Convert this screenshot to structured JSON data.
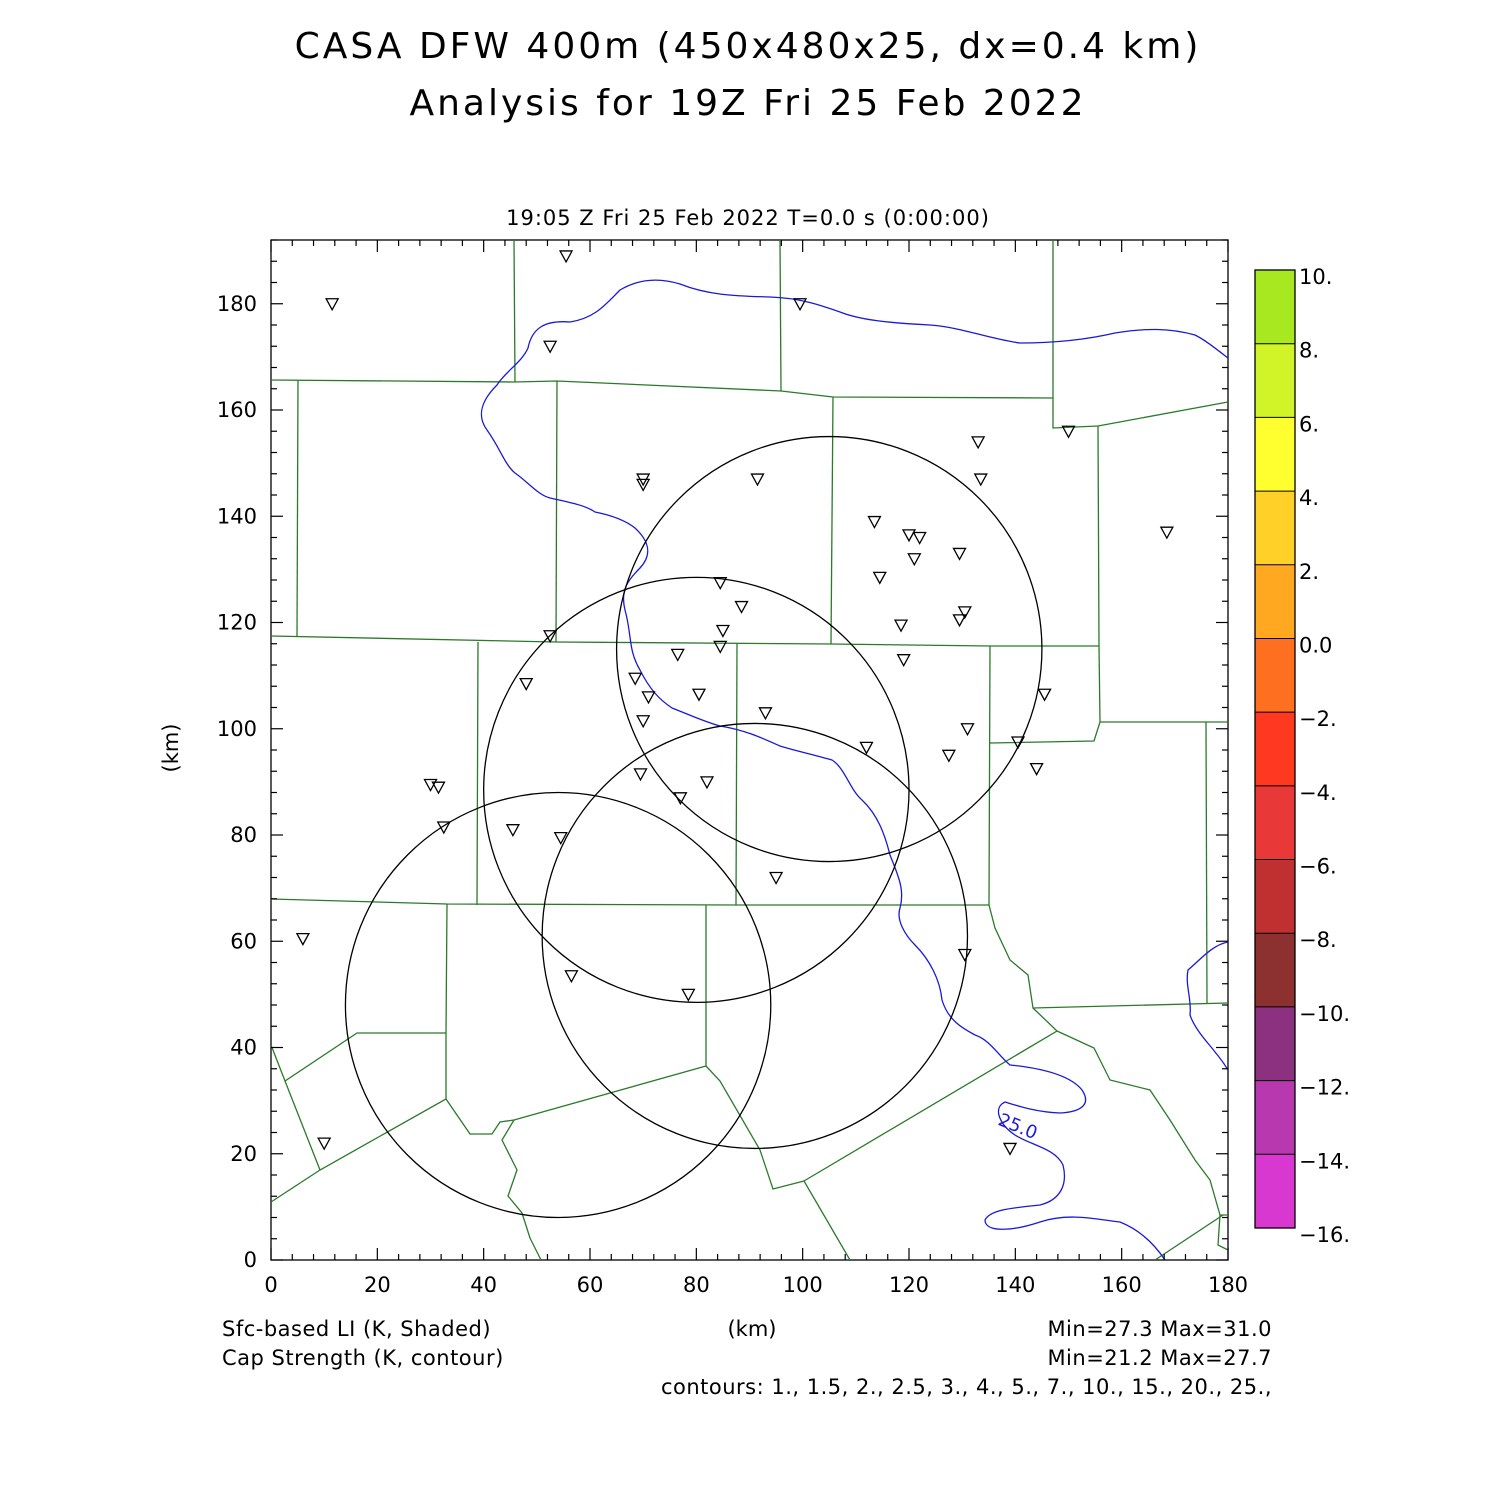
{
  "title": {
    "line1": "CASA DFW 400m (450x480x25, dx=0.4 km)",
    "line2": "Analysis for 19Z Fri 25 Feb 2022"
  },
  "subtitle": "19:05 Z Fri 25 Feb 2022    T=0.0 s (0:00:00)",
  "axes": {
    "xlabel": "(km)",
    "ylabel": "(km)",
    "xlim": [
      0,
      180
    ],
    "ylim": [
      0,
      192
    ],
    "xticks": [
      "0",
      "20",
      "40",
      "60",
      "80",
      "100",
      "120",
      "140",
      "160",
      "180"
    ],
    "yticks": [
      "0",
      "20",
      "40",
      "60",
      "80",
      "100",
      "120",
      "140",
      "160",
      "180"
    ]
  },
  "colorbar": {
    "labels": [
      "10.",
      "8.",
      "6.",
      "4.",
      "2.",
      "0.0",
      "-2.",
      "-4.",
      "-6.",
      "-8.",
      "-10.",
      "-12.",
      "-14.",
      "-16."
    ],
    "colors": [
      "#a8e820",
      "#d0f428",
      "#ffff30",
      "#ffd028",
      "#ffa820",
      "#ff6f20",
      "#ff3820",
      "#e83838",
      "#c03030",
      "#8c3030",
      "#8c3080",
      "#b838b0",
      "#d838d0"
    ]
  },
  "footer": {
    "field1": "Sfc-based LI (K, Shaded)",
    "field2": "Cap Strength (K, contour)",
    "xunits": "(km)",
    "minmax1": "Min=27.3 Max=31.0",
    "minmax2": "Min=21.2 Max=27.7",
    "contours": "contours: 1., 1.5, 2., 2.5, 3., 4., 5., 7., 10., 15., 20., 25.,"
  },
  "contour_label": "25.0",
  "colors": {
    "county_lines": "#2a7a2a",
    "contour": "#1a1ad6",
    "radar_rings": "#000000"
  },
  "chart_data": {
    "type": "map",
    "radars": [
      {
        "cx": 105,
        "cy": 115,
        "r": 40
      },
      {
        "cx": 80,
        "cy": 88.5,
        "r": 40
      },
      {
        "cx": 91,
        "cy": 61,
        "r": 40
      },
      {
        "cx": 54,
        "cy": 48,
        "r": 40
      }
    ],
    "stations": [
      [
        55.5,
        189
      ],
      [
        11.5,
        180
      ],
      [
        99.5,
        180
      ],
      [
        52.5,
        172
      ],
      [
        150,
        156
      ],
      [
        133,
        154
      ],
      [
        70,
        147
      ],
      [
        91.5,
        147
      ],
      [
        70,
        146
      ],
      [
        133.5,
        147
      ],
      [
        113.5,
        139
      ],
      [
        120,
        136.5
      ],
      [
        122,
        136
      ],
      [
        168.5,
        137
      ],
      [
        129.5,
        133
      ],
      [
        121,
        132
      ],
      [
        114.5,
        128.5
      ],
      [
        84.5,
        127.5
      ],
      [
        88.5,
        123
      ],
      [
        130.5,
        122
      ],
      [
        129.5,
        120.5
      ],
      [
        118.5,
        119.5
      ],
      [
        85,
        118.5
      ],
      [
        52.5,
        117.5
      ],
      [
        84.5,
        115.5
      ],
      [
        76.5,
        114
      ],
      [
        119,
        113
      ],
      [
        68.5,
        109.5
      ],
      [
        48,
        108.5
      ],
      [
        71,
        106
      ],
      [
        80.5,
        106.5
      ],
      [
        145.5,
        106.5
      ],
      [
        93,
        103
      ],
      [
        70,
        101.5
      ],
      [
        131,
        100
      ],
      [
        140.5,
        97.5
      ],
      [
        112,
        96.5
      ],
      [
        127.5,
        95
      ],
      [
        144,
        92.5
      ],
      [
        69.5,
        91.5
      ],
      [
        82,
        90
      ],
      [
        30,
        89.5
      ],
      [
        31.5,
        89
      ],
      [
        77,
        87
      ],
      [
        32.5,
        81.5
      ],
      [
        45.5,
        81
      ],
      [
        54.5,
        79.5
      ],
      [
        95,
        72
      ],
      [
        6,
        60.5
      ],
      [
        130.5,
        57.5
      ],
      [
        56.5,
        53.5
      ],
      [
        78.5,
        50
      ],
      [
        10,
        22
      ],
      [
        139,
        21
      ]
    ]
  }
}
